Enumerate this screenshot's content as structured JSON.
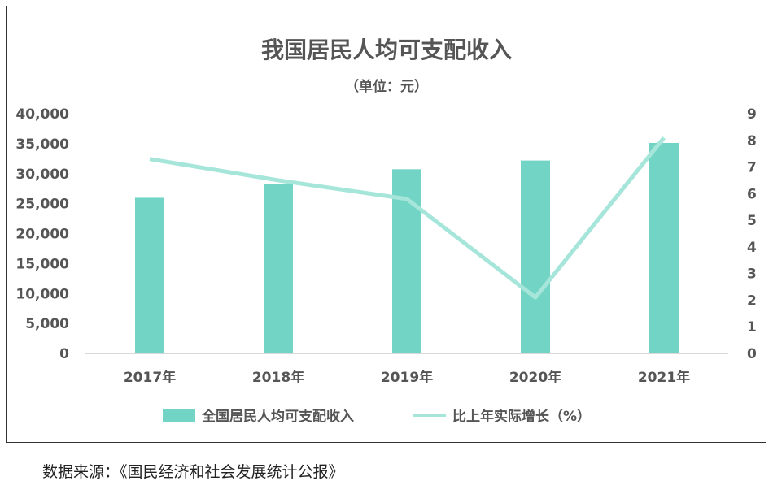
{
  "chart_data": {
    "type": "bar+line",
    "title": "我国居民人均可支配收入",
    "subtitle": "（单位：元）",
    "categories": [
      "2017年",
      "2018年",
      "2019年",
      "2020年",
      "2021年"
    ],
    "series": [
      {
        "name": "全国居民人均可支配收入",
        "type": "bar",
        "axis": "left",
        "color": "#72d4c4",
        "values": [
          25974,
          28228,
          30733,
          32189,
          35128
        ]
      },
      {
        "name": "比上年实际增长（%）",
        "type": "line",
        "axis": "right",
        "color": "#a6e6da",
        "values": [
          7.3,
          6.5,
          5.8,
          2.1,
          8.1
        ]
      }
    ],
    "ylim_left": [
      0,
      40000
    ],
    "yticks_left": [
      "0",
      "5,000",
      "10,000",
      "15,000",
      "20,000",
      "25,000",
      "30,000",
      "35,000",
      "40,000"
    ],
    "ylim_right": [
      0,
      9
    ],
    "yticks_right": [
      "0",
      "1",
      "2",
      "3",
      "4",
      "5",
      "6",
      "7",
      "8",
      "9"
    ],
    "grid": false,
    "legend_position": "bottom"
  },
  "source": "数据来源：《国民经济和社会发展统计公报》"
}
